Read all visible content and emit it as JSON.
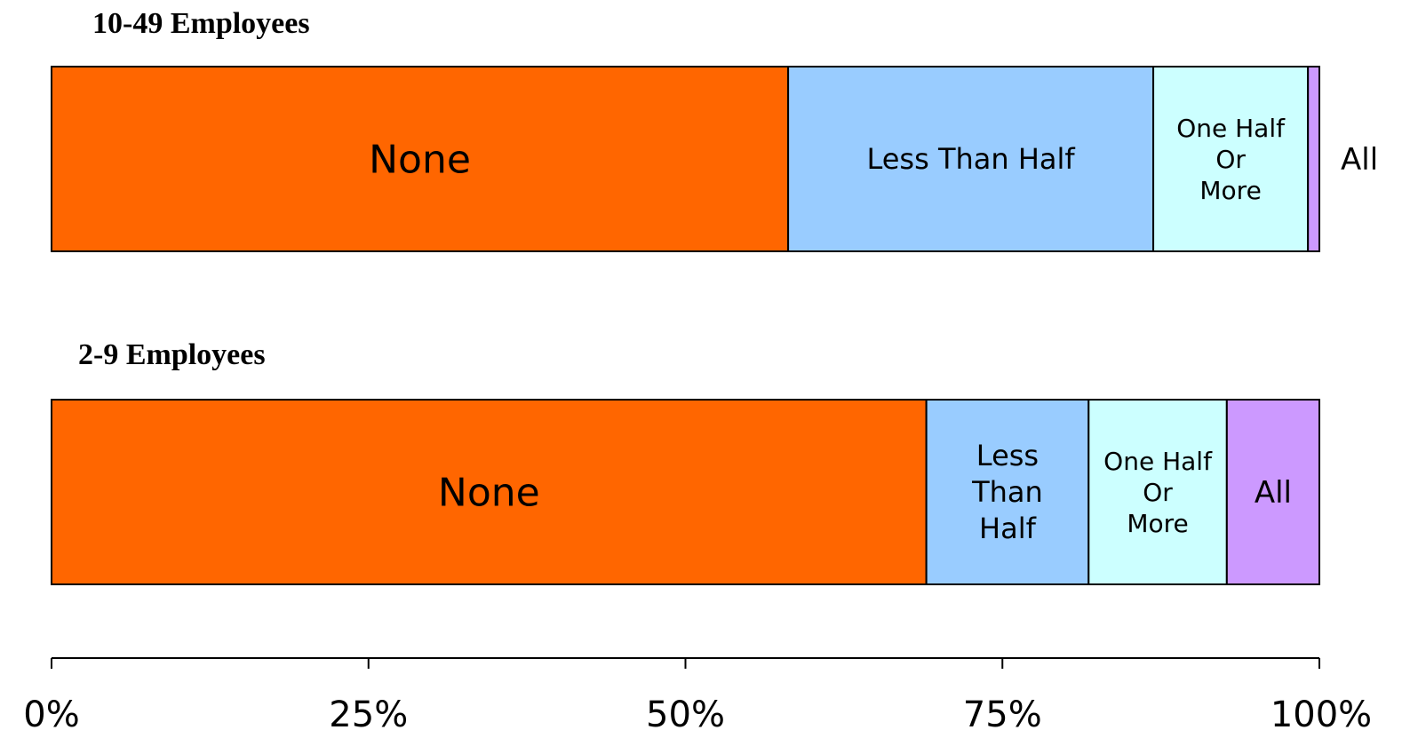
{
  "chart_data": {
    "type": "stacked-bar-horizontal",
    "orientation": "horizontal",
    "stacking": "percent",
    "title": "",
    "xlabel": "",
    "ylabel": "",
    "xlim": [
      0,
      100
    ],
    "x_ticks": [
      "0%",
      "25%",
      "50%",
      "75%",
      "100%"
    ],
    "grid": false,
    "legend": "none",
    "categories": [
      "All",
      "One Half Or More",
      "Less Than Half",
      "None"
    ],
    "colors": {
      "None": "#ff6600",
      "Less Than Half": "#99ccff",
      "One Half Or More": "#ccffff",
      "All": "#cc99ff"
    },
    "bars": [
      {
        "name": "10-49 Employees",
        "segments": [
          {
            "category": "None",
            "value": 58.1,
            "label_lines": [
              "None"
            ]
          },
          {
            "category": "Less Than Half",
            "value": 28.8,
            "label_lines": [
              "Less Than Half"
            ]
          },
          {
            "category": "One Half Or More",
            "value": 12.2,
            "label_lines": [
              "One Half",
              "Or",
              "More"
            ]
          },
          {
            "category": "All",
            "value": 0.9,
            "label_lines": [
              "All"
            ],
            "label_outside": true
          }
        ]
      },
      {
        "name": "2-9 Employees",
        "segments": [
          {
            "category": "None",
            "value": 69.0,
            "label_lines": [
              "None"
            ]
          },
          {
            "category": "Less Than Half",
            "value": 12.8,
            "label_lines": [
              "Less",
              "Than",
              "Half"
            ]
          },
          {
            "category": "One Half Or More",
            "value": 10.9,
            "label_lines": [
              "One Half",
              "Or",
              "More"
            ]
          },
          {
            "category": "All",
            "value": 7.3,
            "label_lines": [
              "All"
            ]
          }
        ]
      }
    ]
  }
}
